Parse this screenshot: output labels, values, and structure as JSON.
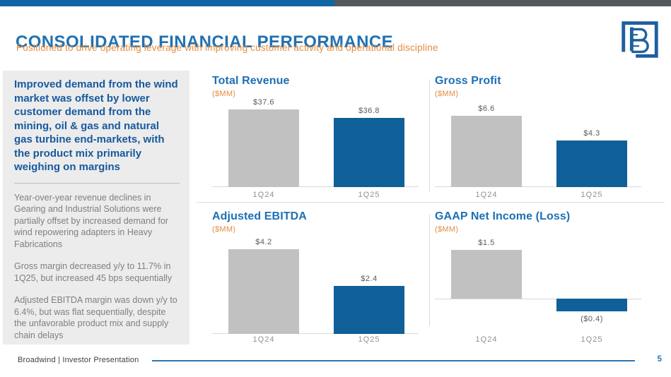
{
  "top_bar": {
    "left_color": "#1164A4",
    "right_color": "#54585B"
  },
  "header": {
    "title": "CONSOLIDATED FINANCIAL PERFORMANCE",
    "subtitle": "Positioned to drive operating leverage with improving customer activity and operational discipline"
  },
  "logo": {
    "name": "broadwind-logo-mark",
    "color": "#1F5FA0"
  },
  "sidebar": {
    "background": "#ECECEC",
    "headline": "Improved demand from the wind market was offset by lower customer demand from the mining, oil & gas and natural gas turbine end-markets, with the product mix primarily weighing on margins",
    "paragraphs": [
      "Year-over-year revenue declines in Gearing and Industrial Solutions were partially offset by increased demand for wind repowering adapters in Heavy Fabrications",
      "Gross margin decreased y/y to 11.7% in 1Q25, but increased 45 bps sequentially",
      "Adjusted EBITDA margin was down y/y to 6.4%, but was flat sequentially, despite the unfavorable product mix and supply chain delays"
    ]
  },
  "colors": {
    "prev_quarter_bar": "#C1C1C1",
    "current_quarter_bar": "#0F6098",
    "chart_title": "#1D6FB5",
    "unit_label": "#E38D3F",
    "axis_line": "#D9D9D9"
  },
  "chart_data": [
    {
      "key": "total-revenue",
      "type": "bar",
      "title": "Total Revenue",
      "unit": "($MM)",
      "categories": [
        "1Q24",
        "1Q25"
      ],
      "values": [
        37.6,
        36.8
      ],
      "value_labels": [
        "$37.6",
        "$36.8"
      ],
      "bar_colors": [
        "#C1C1C1",
        "#0F6098"
      ],
      "ylim": [
        30,
        38.5
      ],
      "grid": false,
      "legend": false
    },
    {
      "key": "gross-profit",
      "type": "bar",
      "title": "Gross Profit",
      "unit": "($MM)",
      "categories": [
        "1Q24",
        "1Q25"
      ],
      "values": [
        6.6,
        4.3
      ],
      "value_labels": [
        "$6.6",
        "$4.3"
      ],
      "bar_colors": [
        "#C1C1C1",
        "#0F6098"
      ],
      "ylim": [
        0,
        8.0
      ],
      "grid": false,
      "legend": false
    },
    {
      "key": "adjusted-ebitda",
      "type": "bar",
      "title": "Adjusted EBITDA",
      "unit": "($MM)",
      "categories": [
        "1Q24",
        "1Q25"
      ],
      "values": [
        4.2,
        2.4
      ],
      "value_labels": [
        "$4.2",
        "$2.4"
      ],
      "bar_colors": [
        "#C1C1C1",
        "#0F6098"
      ],
      "ylim": [
        0,
        4.8
      ],
      "grid": false,
      "legend": false
    },
    {
      "key": "gaap-net-income",
      "type": "bar",
      "title": "GAAP Net Income (Loss)",
      "unit": "($MM)",
      "categories": [
        "1Q24",
        "1Q25"
      ],
      "values": [
        1.5,
        -0.4
      ],
      "value_labels": [
        "$1.5",
        "($0.4)"
      ],
      "bar_colors": [
        "#C1C1C1",
        "#0F6098"
      ],
      "ylim": [
        -1.1,
        1.9
      ],
      "grid": false,
      "legend": false
    }
  ],
  "footer": {
    "left_text": "Broadwind  |  Investor Presentation",
    "page_number": "5"
  }
}
